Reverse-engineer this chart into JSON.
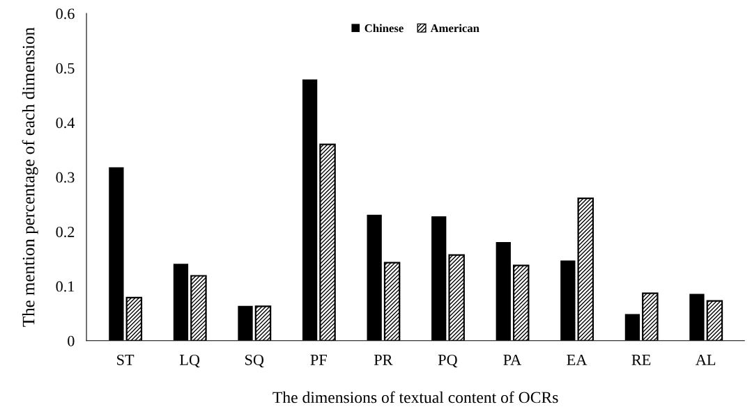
{
  "chart_data": {
    "type": "bar",
    "xlabel": "The dimensions of textual content of OCRs",
    "ylabel": "The mention percentage of each dimension",
    "categories": [
      "ST",
      "LQ",
      "SQ",
      "PF",
      "PR",
      "PQ",
      "PA",
      "EA",
      "RE",
      "AL"
    ],
    "series": [
      {
        "name": "Chinese",
        "color": "#000000",
        "values": [
          0.318,
          0.141,
          0.064,
          0.479,
          0.231,
          0.228,
          0.181,
          0.147,
          0.049,
          0.086
        ]
      },
      {
        "name": "American",
        "color": "#000000",
        "values": [
          0.079,
          0.119,
          0.063,
          0.36,
          0.143,
          0.157,
          0.138,
          0.261,
          0.087,
          0.073
        ]
      }
    ],
    "ylim": [
      0,
      0.6
    ],
    "yticks": [
      {
        "value": 0,
        "label": "0"
      },
      0.1,
      0.2,
      0.3,
      0.4,
      0.5,
      0.6
    ],
    "grid": false,
    "legend": "top"
  }
}
